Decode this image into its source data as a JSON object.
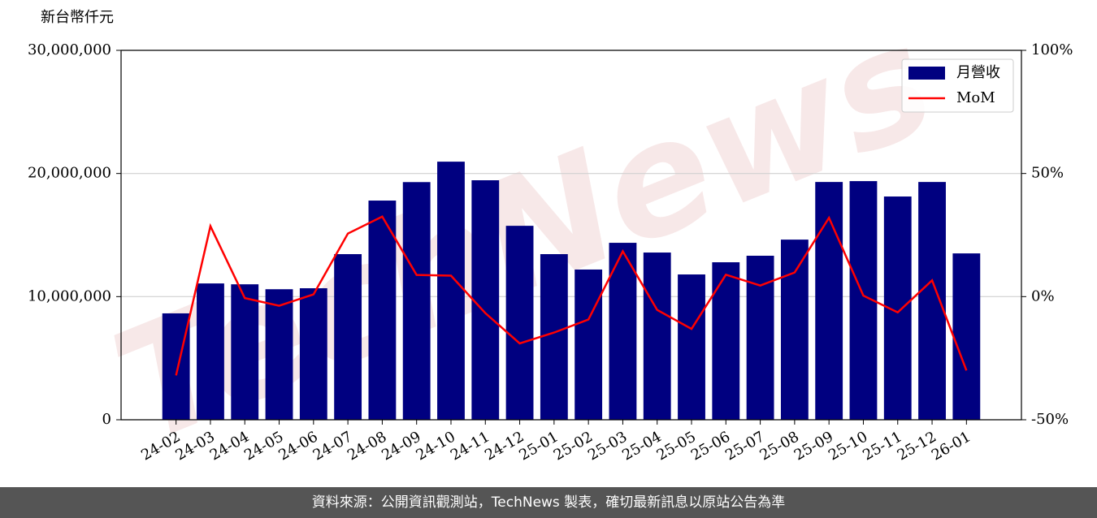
{
  "chart_data": {
    "type": "bar-line",
    "y_axis_label": "新台幣仟元",
    "watermark": "TechNews",
    "source": "資料來源：公開資訊觀測站，TechNews 製表，確切最新訊息以原站公告為準",
    "categories": [
      "24-02",
      "24-03",
      "24-04",
      "24-05",
      "24-06",
      "24-07",
      "24-08",
      "24-09",
      "24-10",
      "24-11",
      "24-12",
      "25-01",
      "25-02",
      "25-03",
      "25-04",
      "25-05",
      "25-06",
      "25-07",
      "25-08",
      "25-09",
      "25-10",
      "25-11",
      "25-12",
      "26-01"
    ],
    "series": [
      {
        "name": "月營收",
        "type": "bar",
        "color": "#000080",
        "axis": "y",
        "values": [
          8640000,
          11070000,
          11000000,
          10600000,
          10680000,
          13450000,
          17800000,
          19300000,
          20960000,
          19450000,
          15750000,
          13450000,
          12200000,
          14370000,
          13580000,
          11800000,
          12790000,
          13320000,
          14630000,
          19310000,
          19380000,
          18130000,
          19310000,
          13510000
        ]
      },
      {
        "name": "MoM",
        "type": "line",
        "color": "#ff0000",
        "axis": "y2",
        "values": [
          -32,
          28.6,
          -0.6,
          -3.7,
          0.9,
          25.6,
          32.5,
          8.8,
          8.5,
          -6.7,
          -19,
          -14.6,
          -9.3,
          18.4,
          -5.4,
          -13.1,
          8.9,
          4.5,
          9.8,
          32,
          0.4,
          -6.4,
          6.6,
          -30
        ]
      }
    ],
    "ylim": [
      0,
      30000000
    ],
    "yticks": [
      0,
      {
        "value": 10000000,
        "label": "10,000,000"
      },
      {
        "value": 20000000,
        "label": "20,000,000"
      },
      {
        "value": 30000000,
        "label": "30,000,000"
      }
    ],
    "y2lim": [
      -50,
      100
    ],
    "y2ticks": [
      {
        "value": -50,
        "label": "-50%"
      },
      {
        "value": 0,
        "label": "0%"
      },
      {
        "value": 50,
        "label": "50%"
      },
      {
        "value": 100,
        "label": "100%"
      }
    ],
    "grid": true,
    "legend": "upper right"
  }
}
